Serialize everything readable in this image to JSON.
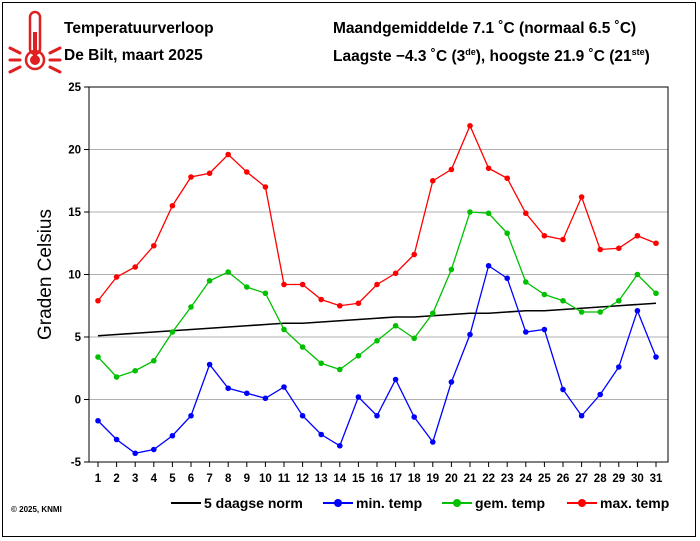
{
  "header": {
    "title": "Temperatuurverloop",
    "location_period": "De Bilt, maart 2025",
    "monthly_avg": "Maandgemiddelde 7.1 ˚C (normaal 6.5 ˚C)",
    "extremes_prefix": "Laagste −4.3 ˚C (3",
    "extremes_sup1": "de",
    "extremes_middle": "), hoogste 21.9 ˚C (21",
    "extremes_sup2": "ste",
    "extremes_suffix": ")"
  },
  "footer": {
    "copyright": "© 2025, KNMI"
  },
  "icon": {
    "name": "thermometer-icon",
    "color": "#e02020"
  },
  "chart_data": {
    "type": "line",
    "title": "",
    "ylabel": "Graden Celsius",
    "xlabel": "",
    "x": [
      1,
      2,
      3,
      4,
      5,
      6,
      7,
      8,
      9,
      10,
      11,
      12,
      13,
      14,
      15,
      16,
      17,
      18,
      19,
      20,
      21,
      22,
      23,
      24,
      25,
      26,
      27,
      28,
      29,
      30,
      31
    ],
    "ylim": [
      -5,
      25
    ],
    "yticks": [
      -5,
      0,
      5,
      10,
      15,
      20,
      25
    ],
    "grid": "horizontal",
    "legend": "bottom",
    "series": [
      {
        "name": "5 daagse norm",
        "color": "#000000",
        "marker": false,
        "values": [
          5.1,
          5.2,
          5.3,
          5.4,
          5.5,
          5.6,
          5.7,
          5.8,
          5.9,
          6.0,
          6.1,
          6.1,
          6.2,
          6.3,
          6.4,
          6.5,
          6.6,
          6.6,
          6.7,
          6.8,
          6.9,
          6.9,
          7.0,
          7.1,
          7.1,
          7.2,
          7.3,
          7.4,
          7.5,
          7.6,
          7.7
        ]
      },
      {
        "name": "min. temp",
        "color": "#0000ff",
        "marker": true,
        "values": [
          -1.7,
          -3.2,
          -4.3,
          -4.0,
          -2.9,
          -1.3,
          2.8,
          0.9,
          0.5,
          0.1,
          1.0,
          -1.3,
          -2.8,
          -3.7,
          0.2,
          -1.3,
          1.6,
          -1.4,
          -3.4,
          1.4,
          5.2,
          10.7,
          9.7,
          5.4,
          5.6,
          0.8,
          -1.3,
          0.4,
          2.6,
          7.1,
          3.4
        ]
      },
      {
        "name": "gem. temp",
        "color": "#00c000",
        "marker": true,
        "values": [
          3.4,
          1.8,
          2.3,
          3.1,
          5.4,
          7.4,
          9.5,
          10.2,
          9.0,
          8.5,
          5.6,
          4.2,
          2.9,
          2.4,
          3.5,
          4.7,
          5.9,
          4.9,
          6.9,
          10.4,
          15.0,
          14.9,
          13.3,
          9.4,
          8.4,
          7.9,
          7.0,
          7.0,
          7.9,
          10.0,
          8.5
        ]
      },
      {
        "name": "max. temp",
        "color": "#ff0000",
        "marker": true,
        "values": [
          7.9,
          9.8,
          10.6,
          12.3,
          15.5,
          17.8,
          18.1,
          19.6,
          18.2,
          17.0,
          9.2,
          9.2,
          8.0,
          7.5,
          7.7,
          9.2,
          10.1,
          11.6,
          17.5,
          18.4,
          21.9,
          18.5,
          17.7,
          14.9,
          13.1,
          12.8,
          16.2,
          12.0,
          12.1,
          13.1,
          12.5
        ]
      }
    ]
  }
}
